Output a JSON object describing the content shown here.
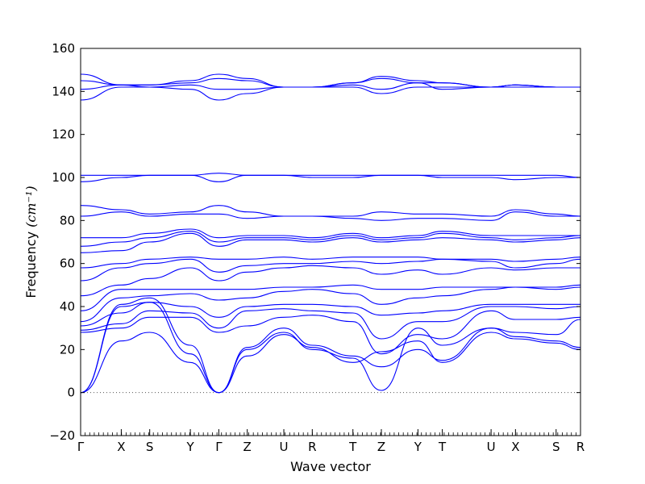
{
  "chart_data": {
    "type": "line",
    "title": "",
    "xlabel": "Wave vector",
    "ylabel": "Frequency",
    "ylabel_unit": "(cm⁻¹)",
    "ylim": [
      -20,
      160
    ],
    "yticks": [
      "−20",
      "0",
      "20",
      "40",
      "60",
      "80",
      "100",
      "120",
      "140",
      "160"
    ],
    "grid": false,
    "zero_line": {
      "y": 0,
      "style": "dotted",
      "color": "#555555"
    },
    "line_color": "#0000ff",
    "segments": [
      "Γ",
      "X",
      "S",
      "Y",
      "Γ",
      "Z",
      "U",
      "R",
      "T",
      "Z",
      "Y",
      "T",
      "U",
      "X",
      "S",
      "R"
    ],
    "breaks_approx": [
      0,
      1.0,
      1.7,
      2.7,
      3.4,
      4.1,
      5.0,
      5.7,
      6.7,
      7.4,
      8.3,
      8.9,
      10.1,
      10.7,
      11.7,
      12.3
    ],
    "note_values": "Values are approximate readings of the frequency bands at each high-symmetry point.",
    "series": [
      {
        "name": "",
        "values": [
          0,
          24,
          28,
          14,
          0,
          17,
          27,
          21,
          14,
          19,
          24,
          14,
          28,
          25,
          23,
          20
        ]
      },
      {
        "name": "",
        "values": [
          0,
          40,
          42,
          18,
          0,
          20,
          28,
          20,
          16,
          1,
          30,
          22,
          30,
          26,
          24,
          21
        ]
      },
      {
        "name": "",
        "values": [
          0,
          41,
          44,
          22,
          0,
          21,
          30,
          22,
          17,
          12,
          20,
          15,
          30,
          28,
          27,
          34
        ]
      },
      {
        "name": "",
        "values": [
          28,
          30,
          35,
          35,
          28,
          31,
          35,
          36,
          33,
          18,
          27,
          25,
          38,
          34,
          34,
          35
        ]
      },
      {
        "name": "",
        "values": [
          29,
          32,
          38,
          37,
          30,
          38,
          39,
          38,
          37,
          25,
          33,
          33,
          40,
          40,
          39,
          40
        ]
      },
      {
        "name": "",
        "values": [
          31,
          37,
          42,
          40,
          35,
          40,
          41,
          41,
          40,
          36,
          37,
          38,
          41,
          41,
          41,
          41
        ]
      },
      {
        "name": "",
        "values": [
          33,
          44,
          45,
          46,
          43,
          44,
          47,
          48,
          46,
          41,
          44,
          45,
          48,
          49,
          48,
          49
        ]
      },
      {
        "name": "",
        "values": [
          38,
          48,
          48,
          48,
          48,
          48,
          49,
          49,
          50,
          48,
          48,
          49,
          49,
          49,
          49,
          50
        ]
      },
      {
        "name": "",
        "values": [
          45,
          50,
          53,
          58,
          52,
          56,
          58,
          59,
          58,
          55,
          57,
          55,
          58,
          57,
          58,
          58
        ]
      },
      {
        "name": "",
        "values": [
          52,
          58,
          60,
          62,
          56,
          59,
          60,
          60,
          61,
          60,
          61,
          62,
          61,
          58,
          60,
          62
        ]
      },
      {
        "name": "",
        "values": [
          58,
          60,
          62,
          63,
          62,
          62,
          63,
          62,
          63,
          63,
          63,
          62,
          62,
          61,
          62,
          63
        ]
      },
      {
        "name": "",
        "values": [
          65,
          66,
          70,
          74,
          68,
          71,
          71,
          70,
          72,
          70,
          71,
          72,
          71,
          70,
          71,
          72
        ]
      },
      {
        "name": "",
        "values": [
          68,
          70,
          72,
          75,
          70,
          72,
          72,
          71,
          73,
          71,
          72,
          74,
          72,
          71,
          72,
          73
        ]
      },
      {
        "name": "",
        "values": [
          72,
          72,
          74,
          76,
          72,
          73,
          73,
          72,
          74,
          72,
          73,
          75,
          73,
          73,
          73,
          73
        ]
      },
      {
        "name": "",
        "values": [
          82,
          84,
          82,
          83,
          83,
          81,
          82,
          82,
          81,
          80,
          81,
          81,
          80,
          84,
          82,
          82
        ]
      },
      {
        "name": "",
        "values": [
          87,
          85,
          83,
          84,
          87,
          84,
          82,
          82,
          82,
          84,
          83,
          83,
          82,
          85,
          83,
          82
        ]
      },
      {
        "name": "",
        "values": [
          98,
          100,
          101,
          101,
          98,
          101,
          101,
          100,
          100,
          101,
          101,
          100,
          100,
          99,
          100,
          100
        ]
      },
      {
        "name": "",
        "values": [
          101,
          101,
          101,
          101,
          102,
          101,
          101,
          101,
          101,
          101,
          101,
          101,
          101,
          101,
          101,
          100
        ]
      },
      {
        "name": "",
        "values": [
          136,
          142,
          142,
          141,
          136,
          139,
          142,
          142,
          142,
          139,
          142,
          142,
          142,
          142,
          142,
          142
        ]
      },
      {
        "name": "",
        "values": [
          141,
          143,
          142,
          143,
          141,
          141,
          142,
          142,
          143,
          141,
          144,
          141,
          142,
          143,
          142,
          142
        ]
      },
      {
        "name": "",
        "values": [
          145,
          143,
          143,
          144,
          146,
          145,
          142,
          142,
          144,
          146,
          144,
          144,
          142,
          143,
          142,
          142
        ]
      },
      {
        "name": "",
        "values": [
          148,
          143,
          143,
          145,
          148,
          146,
          142,
          142,
          144,
          147,
          145,
          144,
          142,
          143,
          142,
          142
        ]
      }
    ]
  }
}
